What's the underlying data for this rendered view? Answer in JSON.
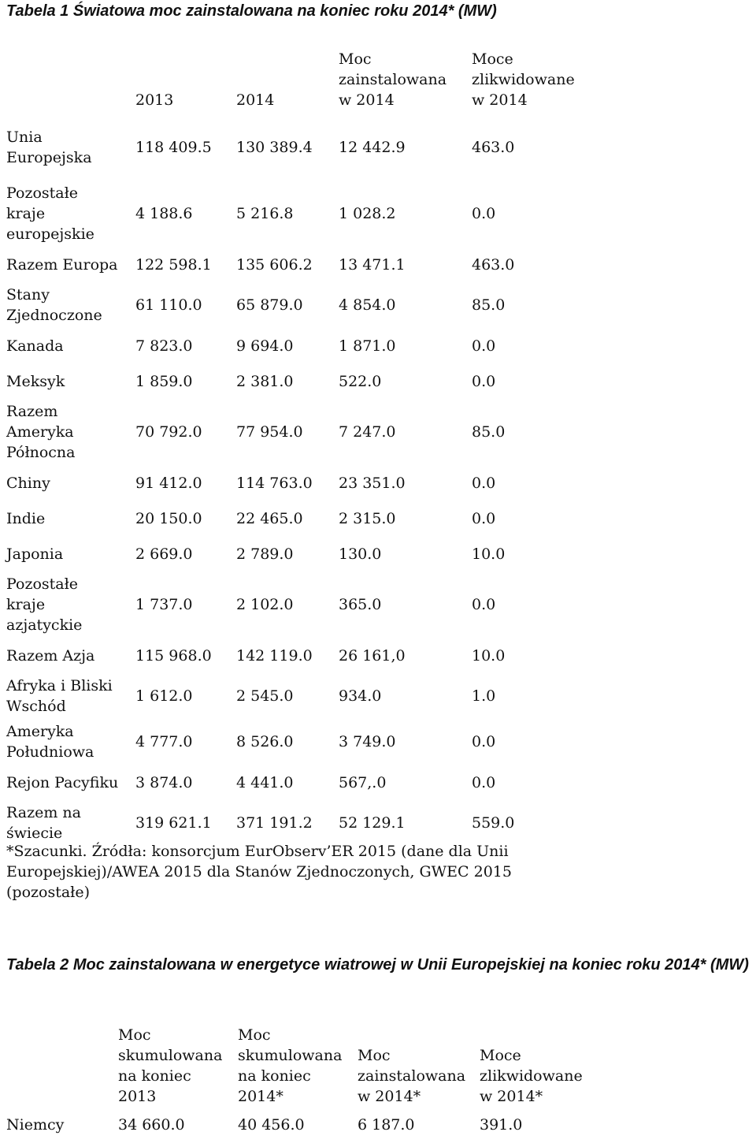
{
  "table1": {
    "caption": "Tabela 1 Światowa moc zainstalowana na koniec roku 2014* (MW)",
    "headers": [
      "",
      "2013",
      "2014",
      "Moc\nzainstalowana\nw 2014",
      "Moce\nzlikwidowane\nw 2014"
    ],
    "rows": [
      [
        "Unia\nEuropejska",
        "118 409.5",
        "130 389.4",
        "12 442.9",
        "463.0"
      ],
      [
        "Pozostałe\nkraje\neuropejskie",
        "4 188.6",
        "5 216.8",
        "1 028.2",
        "0.0"
      ],
      [
        "Razem Europa",
        "122 598.1",
        "135 606.2",
        "13 471.1",
        "463.0"
      ],
      [
        "Stany\nZjednoczone",
        "61 110.0",
        "65 879.0",
        "4 854.0",
        "85.0"
      ],
      [
        "Kanada",
        "7 823.0",
        "9 694.0",
        "1 871.0",
        "0.0"
      ],
      [
        "Meksyk",
        "1 859.0",
        "2 381.0",
        "522.0",
        "0.0"
      ],
      [
        "Razem\nAmeryka\nPółnocna",
        "70 792.0",
        "77 954.0",
        "7 247.0",
        "85.0"
      ],
      [
        "Chiny",
        "91 412.0",
        "114 763.0",
        "23 351.0",
        "0.0"
      ],
      [
        "Indie",
        "20 150.0",
        "22 465.0",
        "2 315.0",
        "0.0"
      ],
      [
        "Japonia",
        "2 669.0",
        "2 789.0",
        "130.0",
        "10.0"
      ],
      [
        "Pozostałe\nkraje\nazjatyckie",
        "1 737.0",
        "2 102.0",
        "365.0",
        "0.0"
      ],
      [
        "Razem Azja",
        "115 968.0",
        "142 119.0",
        "26 161,0",
        "10.0"
      ],
      [
        "Afryka i Bliski\nWschód",
        "1 612.0",
        "2 545.0",
        "934.0",
        "1.0"
      ],
      [
        "Ameryka\nPołudniowa",
        "4 777.0",
        "8 526.0",
        "3 749.0",
        "0.0"
      ],
      [
        "Rejon Pacyfiku",
        "3 874.0",
        "4 441.0",
        "567,.0",
        "0.0"
      ],
      [
        "Razem na\nświecie",
        "319 621.1",
        "371 191.2",
        "52 129.1",
        "559.0"
      ]
    ]
  },
  "note": "*Szacunki. Źródła: konsorcjum EurObserv’ER 2015 (dane dla Unii\nEuropejskiej)/AWEA 2015 dla Stanów Zjednoczonych, GWEC 2015\n(pozostałe)",
  "table2": {
    "caption": "Tabela 2 Moc zainstalowana w energetyce wiatrowej w Unii Europejskiej na koniec roku 2014* (MW)",
    "headers": [
      "",
      "Moc\nskumulowana\nna koniec\n2013",
      "Moc\nskumulowana\nna koniec\n2014*",
      "Moc\nzainstalowana\nw 2014*",
      "Moce\nzlikwidowane\nw 2014*"
    ],
    "rows": [
      [
        "Niemcy",
        "34 660.0",
        "40 456.0",
        "6 187.0",
        "391.0"
      ]
    ]
  }
}
